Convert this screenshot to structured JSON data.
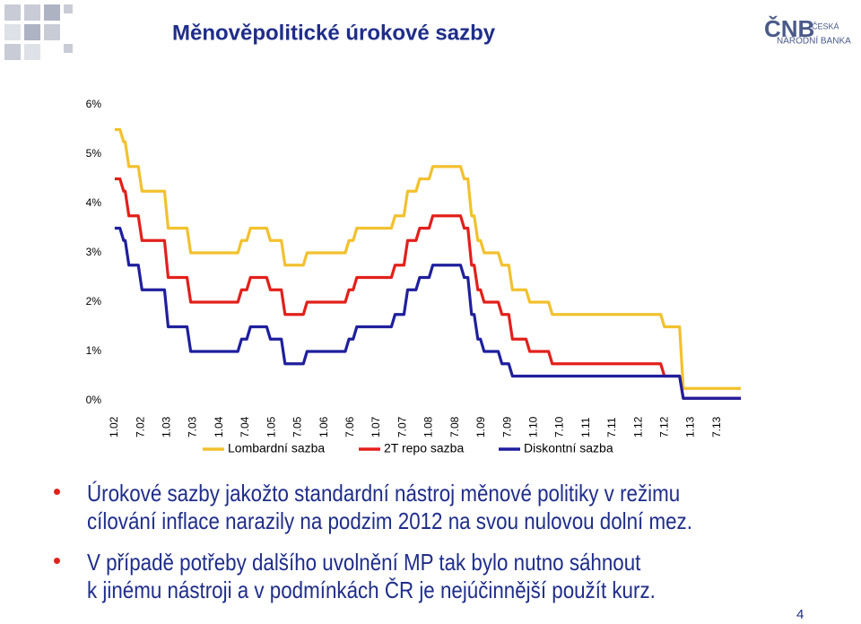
{
  "header": {
    "title": "Měnověpolitické úrokové sazby",
    "logo_mark": "ČNB",
    "logo_line1": "ČESKÁ",
    "logo_line2": "NÁRODNÍ BANKA"
  },
  "chart_data": {
    "type": "line",
    "x": [
      2002.0,
      2002.1,
      2002.17,
      2002.2,
      2002.27,
      2002.45,
      2002.52,
      2002.95,
      2003.02,
      2003.38,
      2003.45,
      2004.35,
      2004.42,
      2004.52,
      2004.59,
      2004.9,
      2004.97,
      2005.18,
      2005.25,
      2005.6,
      2005.67,
      2006.4,
      2006.47,
      2006.55,
      2006.62,
      2007.28,
      2007.35,
      2007.52,
      2007.59,
      2007.75,
      2007.82,
      2008.0,
      2008.07,
      2008.6,
      2008.67,
      2008.74,
      2008.81,
      2008.86,
      2008.93,
      2008.98,
      2009.05,
      2009.32,
      2009.39,
      2009.52,
      2009.59,
      2009.85,
      2009.92,
      2010.28,
      2010.35,
      2012.42,
      2012.49,
      2012.78,
      2012.85,
      2013.95
    ],
    "series": [
      {
        "name": "Lombardní sazba",
        "color": "#f2c12e",
        "values": [
          5.5,
          5.5,
          5.25,
          5.25,
          4.75,
          4.75,
          4.25,
          4.25,
          3.5,
          3.5,
          3.0,
          3.0,
          3.25,
          3.25,
          3.5,
          3.5,
          3.25,
          3.25,
          2.75,
          2.75,
          3.0,
          3.0,
          3.25,
          3.25,
          3.5,
          3.5,
          3.75,
          3.75,
          4.25,
          4.25,
          4.5,
          4.5,
          4.75,
          4.75,
          4.5,
          4.5,
          3.75,
          3.75,
          3.25,
          3.25,
          3.0,
          3.0,
          2.75,
          2.75,
          2.25,
          2.25,
          2.0,
          2.0,
          1.75,
          1.75,
          1.5,
          1.5,
          0.25,
          0.25
        ]
      },
      {
        "name": "2T repo sazba",
        "color": "#e2201b",
        "values": [
          4.5,
          4.5,
          4.25,
          4.25,
          3.75,
          3.75,
          3.25,
          3.25,
          2.5,
          2.5,
          2.0,
          2.0,
          2.25,
          2.25,
          2.5,
          2.5,
          2.25,
          2.25,
          1.75,
          1.75,
          2.0,
          2.0,
          2.25,
          2.25,
          2.5,
          2.5,
          2.75,
          2.75,
          3.25,
          3.25,
          3.5,
          3.5,
          3.75,
          3.75,
          3.5,
          3.5,
          2.75,
          2.75,
          2.25,
          2.25,
          2.0,
          2.0,
          1.75,
          1.75,
          1.25,
          1.25,
          1.0,
          1.0,
          0.75,
          0.75,
          0.5,
          0.5,
          0.05,
          0.05
        ]
      },
      {
        "name": "Diskontní sazba",
        "color": "#1f1f9e",
        "values": [
          3.5,
          3.5,
          3.25,
          3.25,
          2.75,
          2.75,
          2.25,
          2.25,
          1.5,
          1.5,
          1.0,
          1.0,
          1.25,
          1.25,
          1.5,
          1.5,
          1.25,
          1.25,
          0.75,
          0.75,
          1.0,
          1.0,
          1.25,
          1.25,
          1.5,
          1.5,
          1.75,
          1.75,
          2.25,
          2.25,
          2.5,
          2.5,
          2.75,
          2.75,
          2.5,
          2.5,
          1.75,
          1.75,
          1.25,
          1.25,
          1.0,
          1.0,
          0.75,
          0.75,
          0.5,
          0.5,
          0.5,
          0.5,
          0.5,
          0.5,
          0.5,
          0.5,
          0.05,
          0.05
        ]
      }
    ],
    "xlim": [
      2001.95,
      2014.0
    ],
    "xticks": [
      {
        "value": 2002.0,
        "label": "1.02"
      },
      {
        "value": 2002.5,
        "label": "7.02"
      },
      {
        "value": 2003.0,
        "label": "1.03"
      },
      {
        "value": 2003.5,
        "label": "7.03"
      },
      {
        "value": 2004.0,
        "label": "1.04"
      },
      {
        "value": 2004.5,
        "label": "7.04"
      },
      {
        "value": 2005.0,
        "label": "1.05"
      },
      {
        "value": 2005.5,
        "label": "7.05"
      },
      {
        "value": 2006.0,
        "label": "1.06"
      },
      {
        "value": 2006.5,
        "label": "7.06"
      },
      {
        "value": 2007.0,
        "label": "1.07"
      },
      {
        "value": 2007.5,
        "label": "7.07"
      },
      {
        "value": 2008.0,
        "label": "1.08"
      },
      {
        "value": 2008.5,
        "label": "7.08"
      },
      {
        "value": 2009.0,
        "label": "1.09"
      },
      {
        "value": 2009.5,
        "label": "7.09"
      },
      {
        "value": 2010.0,
        "label": "1.10"
      },
      {
        "value": 2010.5,
        "label": "7.10"
      },
      {
        "value": 2011.0,
        "label": "1.11"
      },
      {
        "value": 2011.5,
        "label": "7.11"
      },
      {
        "value": 2012.0,
        "label": "1.12"
      },
      {
        "value": 2012.5,
        "label": "7.12"
      },
      {
        "value": 2013.0,
        "label": "1.13"
      },
      {
        "value": 2013.5,
        "label": "7.13"
      }
    ],
    "ylim": [
      0,
      6
    ],
    "yticks": [
      {
        "value": 0,
        "label": "0%"
      },
      {
        "value": 1,
        "label": "1%"
      },
      {
        "value": 2,
        "label": "2%"
      },
      {
        "value": 3,
        "label": "3%"
      },
      {
        "value": 4,
        "label": "4%"
      },
      {
        "value": 5,
        "label": "5%"
      },
      {
        "value": 6,
        "label": "6%"
      }
    ],
    "grid": false,
    "legend": "bottom"
  },
  "bullets": [
    [
      "Úrokové sazby jakožto standardní nástroj měnové politiky v režimu",
      "cílování inflace narazily na podzim 2012 na svou nulovou dolní mez."
    ],
    [
      "V případě potřeby dalšího uvolnění MP tak bylo nutno sáhnout",
      "k jinému nástroji a v podmínkách ČR je nejúčinnější použít kurz."
    ]
  ],
  "page_number": "4"
}
